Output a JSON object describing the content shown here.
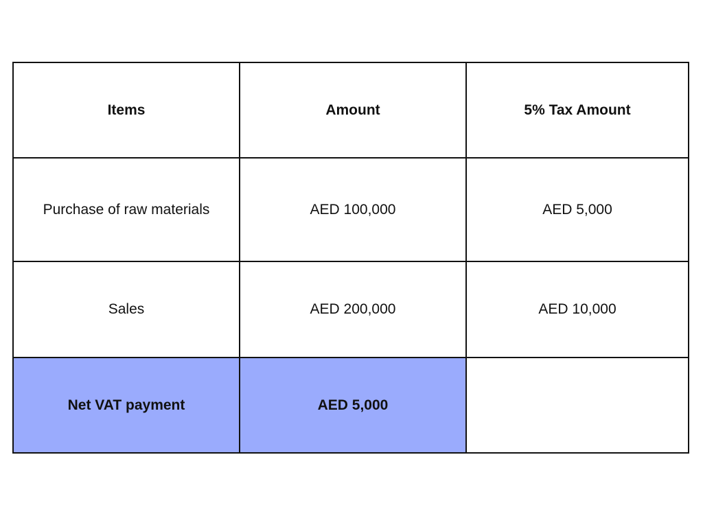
{
  "table": {
    "headers": [
      "Items",
      "Amount",
      "5% Tax Amount"
    ],
    "rows": [
      [
        "Purchase of raw materials",
        "AED 100,000",
        "AED 5,000"
      ],
      [
        "Sales",
        "AED 200,000",
        "AED 10,000"
      ],
      [
        "Net VAT payment",
        "AED 5,000",
        ""
      ]
    ],
    "highlight_color": "#9aabfd"
  }
}
